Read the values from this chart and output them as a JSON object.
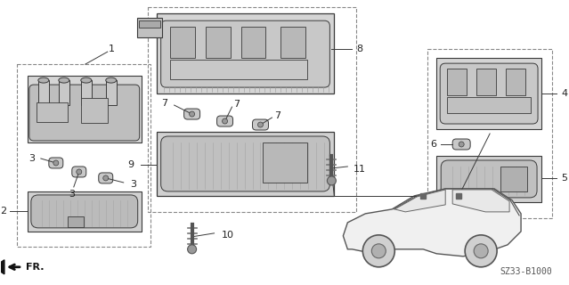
{
  "bg_color": "#ffffff",
  "part_code": "SZ33-B1000",
  "lc": "#3a3a3a",
  "gray_fill": "#d8d8d8",
  "dark_gray": "#888888",
  "light_gray": "#c0c0c0",
  "dashed_color": "#666666"
}
